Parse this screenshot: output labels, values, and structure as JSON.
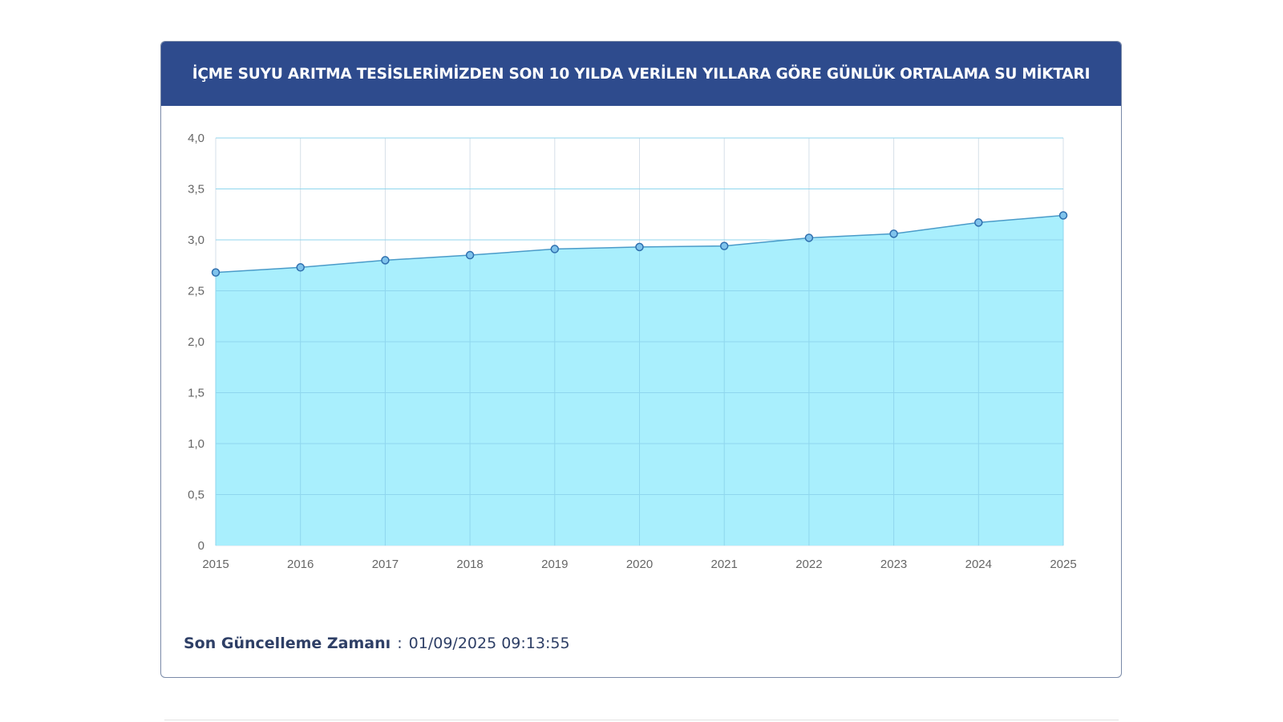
{
  "header": {
    "title": "İÇME SUYU ARITMA TESİSLERİMİZDEN SON 10 YILDA VERİLEN YILLARA GÖRE GÜNLÜK ORTALAMA SU MİKTARI"
  },
  "footer": {
    "label": "Son Güncelleme Zamanı",
    "separator": ":",
    "timestamp": "01/09/2025 09:13:55"
  },
  "colors": {
    "header_bg": "#2e4b8d",
    "area_fill": "#a9effd",
    "line": "#4a9bc9",
    "point_fill": "#7fc3ec",
    "point_stroke": "#2f6fae",
    "grid": "#d6dfe8"
  },
  "chart_data": {
    "type": "area",
    "title": "İÇME SUYU ARITMA TESİSLERİMİZDEN SON 10 YILDA VERİLEN YILLARA GÖRE GÜNLÜK ORTALAMA SU MİKTARI",
    "xlabel": "",
    "ylabel": "",
    "categories": [
      "2015",
      "2016",
      "2017",
      "2018",
      "2019",
      "2020",
      "2021",
      "2022",
      "2023",
      "2024",
      "2025"
    ],
    "series": [
      {
        "name": "Günlük Ortalama Su Miktarı",
        "values": [
          2.68,
          2.73,
          2.8,
          2.85,
          2.91,
          2.93,
          2.94,
          3.02,
          3.06,
          3.17,
          3.24
        ]
      }
    ],
    "ylim": [
      0,
      4.0
    ],
    "yticks": [
      0,
      0.5,
      1.0,
      1.5,
      2.0,
      2.5,
      3.0,
      3.5,
      4.0
    ],
    "ytick_labels": [
      "0",
      "0,5",
      "1,0",
      "1,5",
      "2,0",
      "2,5",
      "3,0",
      "3,5",
      "4,0"
    ],
    "grid": true,
    "legend": "none"
  }
}
